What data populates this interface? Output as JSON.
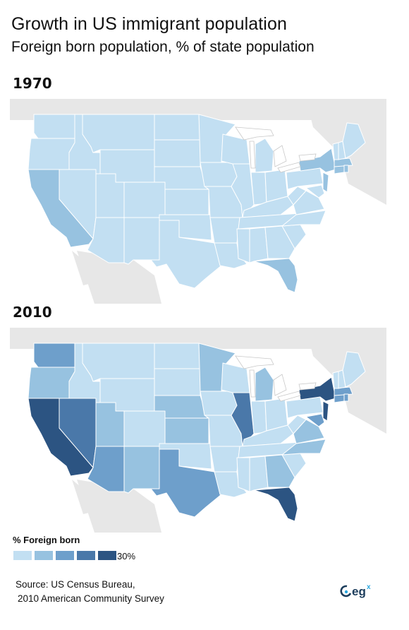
{
  "title": "Growth in US immigrant population",
  "subtitle": "Foreign born population, % of state population",
  "maps": [
    {
      "year": "1970"
    },
    {
      "year": "2010"
    }
  ],
  "legend": {
    "title": "% Foreign born",
    "max_label": "30%",
    "colors": [
      "#c2dff2",
      "#97c2e0",
      "#6e9fcb",
      "#4a78a9",
      "#2c5482"
    ]
  },
  "source": {
    "line1": "Source: US Census Bureau,",
    "line2": "2010 American Community Survey"
  },
  "logo": {
    "text": "eg",
    "superscript": "x",
    "brand_color": "#1c3d5c",
    "accent_color": "#2aa7df"
  },
  "colors": {
    "land_outside_us": "#e7e7e7",
    "state_border": "#ffffff",
    "water": "#ffffff"
  }
}
